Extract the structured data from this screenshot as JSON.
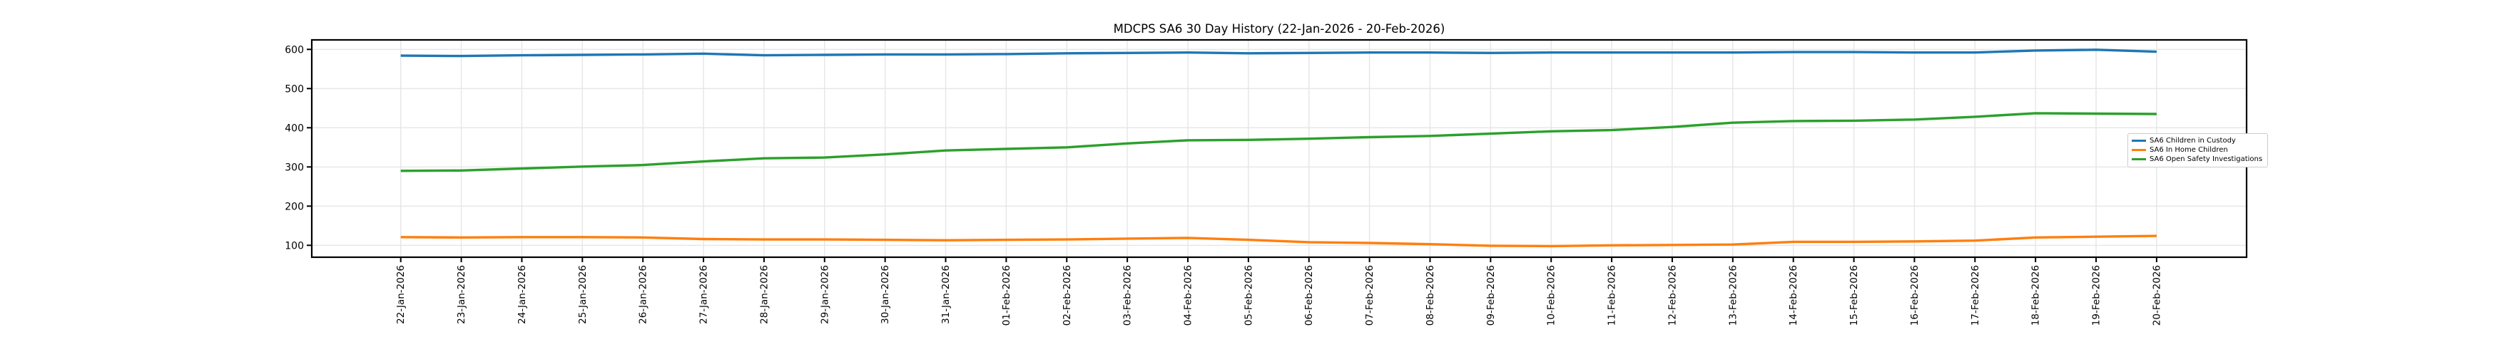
{
  "chart_data": {
    "type": "line",
    "title": "MDCPS SA6 30 Day History (22-Jan-2026 - 20-Feb-2026)",
    "xlabel": "",
    "ylabel": "",
    "grid": true,
    "legend_position": "center right",
    "yticks": [
      100,
      200,
      300,
      400,
      500,
      600
    ],
    "ylim": [
      70,
      624
    ],
    "categories": [
      "22-Jan-2026",
      "23-Jan-2026",
      "24-Jan-2026",
      "25-Jan-2026",
      "26-Jan-2026",
      "27-Jan-2026",
      "28-Jan-2026",
      "29-Jan-2026",
      "30-Jan-2026",
      "31-Jan-2026",
      "01-Feb-2026",
      "02-Feb-2026",
      "03-Feb-2026",
      "04-Feb-2026",
      "05-Feb-2026",
      "06-Feb-2026",
      "07-Feb-2026",
      "08-Feb-2026",
      "09-Feb-2026",
      "10-Feb-2026",
      "11-Feb-2026",
      "12-Feb-2026",
      "13-Feb-2026",
      "14-Feb-2026",
      "15-Feb-2026",
      "16-Feb-2026",
      "17-Feb-2026",
      "18-Feb-2026",
      "19-Feb-2026",
      "20-Feb-2026"
    ],
    "series": [
      {
        "name": "SA6 Children in Custody",
        "color": "#1f77b4",
        "values": [
          584,
          583,
          585,
          586,
          587,
          589,
          585,
          586,
          587,
          587,
          588,
          590,
          591,
          592,
          590,
          591,
          592,
          592,
          591,
          592,
          592,
          592,
          592,
          593,
          593,
          592,
          592,
          597,
          599,
          594
        ]
      },
      {
        "name": "SA6 In Home Children",
        "color": "#ff7f0e",
        "values": [
          121,
          120,
          121,
          121,
          120,
          116,
          115,
          115,
          114,
          113,
          114,
          115,
          117,
          119,
          114,
          108,
          106,
          103,
          99,
          98,
          100,
          101,
          102,
          109,
          109,
          110,
          112,
          120,
          122,
          124
        ]
      },
      {
        "name": "SA6 Open Safety Investigations",
        "color": "#2ca02c",
        "values": [
          290,
          291,
          296,
          301,
          305,
          314,
          322,
          324,
          332,
          342,
          346,
          350,
          360,
          368,
          369,
          372,
          376,
          379,
          385,
          391,
          394,
          402,
          413,
          417,
          418,
          421,
          428,
          437,
          436,
          435
        ]
      }
    ],
    "colors": {
      "grid": "#e6e6e6",
      "spine": "#000000",
      "text": "#000000"
    }
  }
}
